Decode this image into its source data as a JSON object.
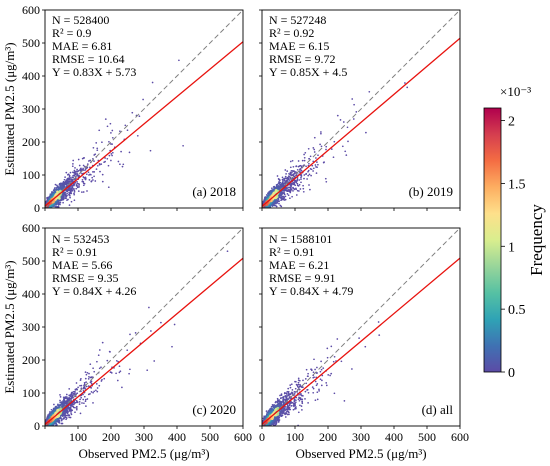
{
  "chart_data": [
    {
      "type": "scatter",
      "panel_label": "(a) 2018",
      "stats": [
        "N = 528400",
        "R² = 0.9",
        "MAE = 6.81",
        "RMSE = 10.64",
        "Y = 0.83X + 5.73"
      ],
      "fit": {
        "slope": 0.83,
        "intercept": 5.73
      },
      "xlim": [
        0,
        600
      ],
      "ylim": [
        0,
        600
      ],
      "xticks": [],
      "yticks": [
        "0",
        "100",
        "200",
        "300",
        "400",
        "500",
        "600"
      ],
      "xlabel": "",
      "ylabel": "Estimated PM2.5 (μg/m³)"
    },
    {
      "type": "scatter",
      "panel_label": "(b) 2019",
      "stats": [
        "N = 527248",
        "R² = 0.92",
        "MAE = 6.15",
        "RMSE = 9.72",
        "Y = 0.85X + 4.5"
      ],
      "fit": {
        "slope": 0.85,
        "intercept": 4.5
      },
      "xlim": [
        0,
        600
      ],
      "ylim": [
        0,
        600
      ],
      "xticks": [],
      "yticks": [],
      "xlabel": "",
      "ylabel": ""
    },
    {
      "type": "scatter",
      "panel_label": "(c) 2020",
      "stats": [
        "N = 532453",
        "R² = 0.91",
        "MAE = 5.66",
        "RMSE = 9.35",
        "Y = 0.84X + 4.26"
      ],
      "fit": {
        "slope": 0.84,
        "intercept": 4.26
      },
      "xlim": [
        0,
        600
      ],
      "ylim": [
        0,
        600
      ],
      "xticks": [
        "100",
        "200",
        "300",
        "400",
        "500",
        "600"
      ],
      "yticks": [
        "0",
        "100",
        "200",
        "300",
        "400",
        "500",
        "600"
      ],
      "xlabel": "Observed PM2.5 (μg/m³)",
      "ylabel": "Estimated PM2.5 (μg/m³)"
    },
    {
      "type": "scatter",
      "panel_label": "(d) all",
      "stats": [
        "N = 1588101",
        "R² = 0.91",
        "MAE = 6.21",
        "RMSE = 9.91",
        "Y = 0.84X + 4.79"
      ],
      "fit": {
        "slope": 0.84,
        "intercept": 4.79
      },
      "xlim": [
        0,
        600
      ],
      "ylim": [
        0,
        600
      ],
      "xticks": [
        "0",
        "100",
        "200",
        "300",
        "400",
        "500",
        "600"
      ],
      "yticks": [],
      "xlabel": "Observed PM2.5 (μg/m³)",
      "ylabel": ""
    }
  ],
  "colorbar": {
    "label": "Frequency",
    "multiplier": "×10⁻³",
    "ticks": [
      "0",
      "0.5",
      "1",
      "1.5",
      "2"
    ],
    "tick_values": [
      0,
      0.5,
      1,
      1.5,
      2
    ],
    "max": 2.1,
    "colors": [
      "#5c4ba6",
      "#3f72b3",
      "#2fa3b5",
      "#56c1a3",
      "#98d59a",
      "#d9ee8e",
      "#fee08b",
      "#fdae61",
      "#f46d43",
      "#d53e4f",
      "#b0004d"
    ]
  },
  "colors": {
    "fit_line": "#e8130f",
    "identity_line": "#808080",
    "points": "#5c4ba6"
  }
}
